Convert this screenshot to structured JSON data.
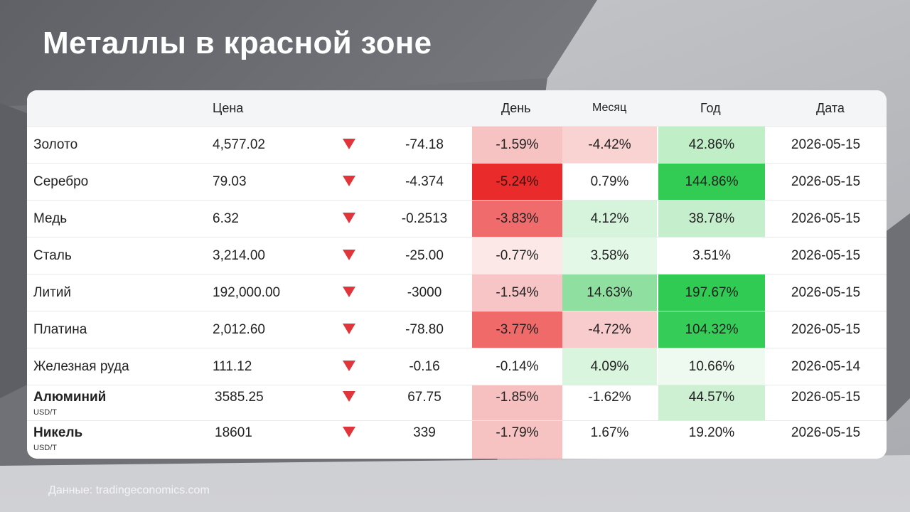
{
  "title": "Металлы в красной зоне",
  "headers": {
    "price": "Цена",
    "day": "День",
    "month": "Месяц",
    "year": "Год",
    "date": "Дата"
  },
  "rows": [
    {
      "name": "Золото",
      "unit": "",
      "price": "4,577.02",
      "change": "-74.18",
      "day": "-1.59%",
      "month": "-4.42%",
      "year": "42.86%",
      "date": "2026-05-15",
      "day_color": "#f7c2c2",
      "month_color": "#f9d2d2",
      "year_color": "#bfeec7"
    },
    {
      "name": "Серебро",
      "unit": "",
      "price": "79.03",
      "change": "-4.374",
      "day": "-5.24%",
      "month": "0.79%",
      "year": "144.86%",
      "date": "2026-05-15",
      "day_color": "#ea2b2b",
      "month_color": "#ffffff",
      "year_color": "#32cc55"
    },
    {
      "name": "Медь",
      "unit": "",
      "price": "6.32",
      "change": "-0.2513",
      "day": "-3.83%",
      "month": "4.12%",
      "year": "38.78%",
      "date": "2026-05-15",
      "day_color": "#f06b6b",
      "month_color": "#d6f4db",
      "year_color": "#c5efcc"
    },
    {
      "name": "Сталь",
      "unit": "",
      "price": "3,214.00",
      "change": "-25.00",
      "day": "-0.77%",
      "month": "3.58%",
      "year": "3.51%",
      "date": "2026-05-15",
      "day_color": "#fde8e8",
      "month_color": "#e4f8e7",
      "year_color": "#ffffff"
    },
    {
      "name": "Литий",
      "unit": "",
      "price": "192,000.00",
      "change": "-3000",
      "day": "-1.54%",
      "month": "14.63%",
      "year": "197.67%",
      "date": "2026-05-15",
      "day_color": "#f7c5c5",
      "month_color": "#8fe0a0",
      "year_color": "#2fcb53"
    },
    {
      "name": "Платина",
      "unit": "",
      "price": "2,012.60",
      "change": "-78.80",
      "day": "-3.77%",
      "month": "-4.72%",
      "year": "104.32%",
      "date": "2026-05-15",
      "day_color": "#f06a6a",
      "month_color": "#f8cccc",
      "year_color": "#35cd58"
    },
    {
      "name": "Железная руда",
      "unit": "",
      "price": "111.12",
      "change": "-0.16",
      "day": "-0.14%",
      "month": "4.09%",
      "year": "10.66%",
      "date": "2026-05-14",
      "day_color": "#ffffff",
      "month_color": "#d9f5de",
      "year_color": "#eefaf0"
    },
    {
      "name": "Алюминий",
      "unit": "USD/T",
      "price": "3585.25",
      "change": "67.75",
      "day": "-1.85%",
      "month": "-1.62%",
      "year": "44.57%",
      "date": "2026-05-15",
      "day_color": "#f6c0c0",
      "month_color": "#ffffff",
      "year_color": "#cdf0d3"
    },
    {
      "name": "Никель",
      "unit": "USD/T",
      "price": "18601",
      "change": "339",
      "day": "-1.79%",
      "month": "1.67%",
      "year": "19.20%",
      "date": "2026-05-15",
      "day_color": "#f6c2c2",
      "month_color": "#ffffff",
      "year_color": "#ffffff"
    }
  ],
  "footer": "Данные: tradingeconomics.com",
  "colors": {
    "arrow_down": "#e0353b",
    "title": "#ffffff"
  },
  "icons": {
    "change_indicator": "triangle-down-icon"
  }
}
